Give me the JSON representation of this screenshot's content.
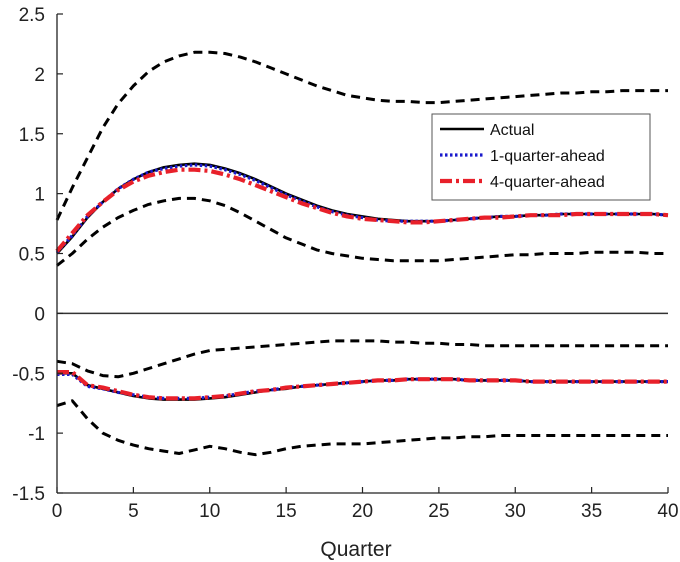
{
  "chart_data": {
    "type": "line",
    "title": "",
    "xlabel": "Quarter",
    "ylabel": "",
    "xlim": [
      0,
      40
    ],
    "ylim": [
      -1.5,
      2.5
    ],
    "xticks": [
      0,
      5,
      10,
      15,
      20,
      25,
      30,
      35,
      40
    ],
    "yticks": [
      -1.5,
      -1,
      -0.5,
      0,
      0.5,
      1,
      1.5,
      2,
      2.5
    ],
    "ytick_labels": [
      "-1.5",
      "-1",
      "-0.5",
      "0",
      "0.5",
      "1",
      "1.5",
      "2",
      "2.5"
    ],
    "grid": false,
    "legend_position": "top-right",
    "zero_line": true,
    "legend": [
      {
        "name": "Actual",
        "color": "#000000",
        "style": "solid"
      },
      {
        "name": "1-quarter-ahead",
        "color": "#1a1acc",
        "style": "dotted"
      },
      {
        "name": "4-quarter-ahead",
        "color": "#e8202a",
        "style": "dashdot"
      }
    ],
    "series": [
      {
        "group": "upper",
        "role": "upper-band",
        "color": "#000000",
        "style": "dashed",
        "x": [
          0,
          1,
          2,
          3,
          4,
          5,
          6,
          7,
          8,
          9,
          10,
          11,
          12,
          13,
          14,
          15,
          16,
          17,
          18,
          19,
          20,
          21,
          22,
          23,
          24,
          25,
          26,
          27,
          28,
          29,
          30,
          31,
          32,
          33,
          34,
          35,
          36,
          37,
          38,
          39,
          40
        ],
        "y": [
          0.78,
          1.05,
          1.3,
          1.55,
          1.75,
          1.9,
          2.02,
          2.1,
          2.15,
          2.18,
          2.18,
          2.17,
          2.14,
          2.1,
          2.05,
          2.0,
          1.95,
          1.9,
          1.86,
          1.82,
          1.8,
          1.78,
          1.77,
          1.77,
          1.76,
          1.76,
          1.77,
          1.78,
          1.79,
          1.8,
          1.81,
          1.82,
          1.83,
          1.84,
          1.84,
          1.85,
          1.85,
          1.86,
          1.86,
          1.86,
          1.86
        ]
      },
      {
        "group": "upper",
        "role": "lower-band",
        "color": "#000000",
        "style": "dashed",
        "x": [
          0,
          1,
          2,
          3,
          4,
          5,
          6,
          7,
          8,
          9,
          10,
          11,
          12,
          13,
          14,
          15,
          16,
          17,
          18,
          19,
          20,
          21,
          22,
          23,
          24,
          25,
          26,
          27,
          28,
          29,
          30,
          31,
          32,
          33,
          34,
          35,
          36,
          37,
          38,
          39,
          40
        ],
        "y": [
          0.4,
          0.5,
          0.62,
          0.72,
          0.8,
          0.86,
          0.91,
          0.94,
          0.96,
          0.96,
          0.94,
          0.9,
          0.84,
          0.77,
          0.7,
          0.63,
          0.58,
          0.53,
          0.5,
          0.48,
          0.46,
          0.45,
          0.44,
          0.44,
          0.44,
          0.44,
          0.45,
          0.46,
          0.47,
          0.48,
          0.49,
          0.49,
          0.5,
          0.5,
          0.5,
          0.51,
          0.51,
          0.51,
          0.51,
          0.5,
          0.5
        ]
      },
      {
        "group": "upper",
        "name": "Actual",
        "color": "#000000",
        "style": "solid",
        "x": [
          0,
          1,
          2,
          3,
          4,
          5,
          6,
          7,
          8,
          9,
          10,
          11,
          12,
          13,
          14,
          15,
          16,
          17,
          18,
          19,
          20,
          21,
          22,
          23,
          24,
          25,
          26,
          27,
          28,
          29,
          30,
          31,
          32,
          33,
          34,
          35,
          36,
          37,
          38,
          39,
          40
        ],
        "y": [
          0.5,
          0.64,
          0.8,
          0.93,
          1.04,
          1.12,
          1.18,
          1.22,
          1.24,
          1.25,
          1.24,
          1.21,
          1.17,
          1.12,
          1.06,
          1.0,
          0.95,
          0.9,
          0.86,
          0.83,
          0.81,
          0.79,
          0.78,
          0.77,
          0.77,
          0.77,
          0.78,
          0.79,
          0.8,
          0.81,
          0.81,
          0.82,
          0.82,
          0.83,
          0.83,
          0.83,
          0.83,
          0.83,
          0.83,
          0.83,
          0.82
        ]
      },
      {
        "group": "upper",
        "name": "1-quarter-ahead",
        "color": "#1a1acc",
        "style": "dotted",
        "x": [
          0,
          1,
          2,
          3,
          4,
          5,
          6,
          7,
          8,
          9,
          10,
          11,
          12,
          13,
          14,
          15,
          16,
          17,
          18,
          19,
          20,
          21,
          22,
          23,
          24,
          25,
          26,
          27,
          28,
          29,
          30,
          31,
          32,
          33,
          34,
          35,
          36,
          37,
          38,
          39,
          40
        ],
        "y": [
          0.51,
          0.65,
          0.81,
          0.93,
          1.04,
          1.12,
          1.18,
          1.21,
          1.23,
          1.24,
          1.23,
          1.2,
          1.16,
          1.11,
          1.05,
          0.99,
          0.94,
          0.89,
          0.85,
          0.82,
          0.8,
          0.78,
          0.77,
          0.77,
          0.77,
          0.77,
          0.78,
          0.79,
          0.8,
          0.81,
          0.81,
          0.82,
          0.82,
          0.83,
          0.83,
          0.83,
          0.83,
          0.83,
          0.83,
          0.83,
          0.82
        ]
      },
      {
        "group": "upper",
        "name": "4-quarter-ahead",
        "color": "#e8202a",
        "style": "dashdot",
        "x": [
          0,
          1,
          2,
          3,
          4,
          5,
          6,
          7,
          8,
          9,
          10,
          11,
          12,
          13,
          14,
          15,
          16,
          17,
          18,
          19,
          20,
          21,
          22,
          23,
          24,
          25,
          26,
          27,
          28,
          29,
          30,
          31,
          32,
          33,
          34,
          35,
          36,
          37,
          38,
          39,
          40
        ],
        "y": [
          0.52,
          0.67,
          0.82,
          0.93,
          1.03,
          1.1,
          1.15,
          1.18,
          1.2,
          1.2,
          1.19,
          1.16,
          1.12,
          1.07,
          1.02,
          0.97,
          0.92,
          0.88,
          0.84,
          0.81,
          0.79,
          0.78,
          0.77,
          0.76,
          0.76,
          0.77,
          0.78,
          0.79,
          0.8,
          0.8,
          0.81,
          0.82,
          0.82,
          0.82,
          0.83,
          0.83,
          0.83,
          0.83,
          0.83,
          0.83,
          0.82
        ]
      },
      {
        "group": "lower",
        "role": "upper-band",
        "color": "#000000",
        "style": "dashed",
        "x": [
          0,
          1,
          2,
          3,
          4,
          5,
          6,
          7,
          8,
          9,
          10,
          11,
          12,
          13,
          14,
          15,
          16,
          17,
          18,
          19,
          20,
          21,
          22,
          23,
          24,
          25,
          26,
          27,
          28,
          29,
          30,
          31,
          32,
          33,
          34,
          35,
          36,
          37,
          38,
          39,
          40
        ],
        "y": [
          -0.4,
          -0.42,
          -0.48,
          -0.52,
          -0.53,
          -0.5,
          -0.46,
          -0.42,
          -0.38,
          -0.34,
          -0.31,
          -0.3,
          -0.29,
          -0.28,
          -0.27,
          -0.26,
          -0.25,
          -0.24,
          -0.23,
          -0.23,
          -0.23,
          -0.23,
          -0.24,
          -0.24,
          -0.25,
          -0.25,
          -0.26,
          -0.26,
          -0.27,
          -0.27,
          -0.27,
          -0.27,
          -0.27,
          -0.27,
          -0.27,
          -0.27,
          -0.27,
          -0.27,
          -0.27,
          -0.27,
          -0.27
        ]
      },
      {
        "group": "lower",
        "role": "lower-band",
        "color": "#000000",
        "style": "dashed",
        "x": [
          0,
          1,
          2,
          3,
          4,
          5,
          6,
          7,
          8,
          9,
          10,
          11,
          12,
          13,
          14,
          15,
          16,
          17,
          18,
          19,
          20,
          21,
          22,
          23,
          24,
          25,
          26,
          27,
          28,
          29,
          30,
          31,
          32,
          33,
          34,
          35,
          36,
          37,
          38,
          39,
          40
        ],
        "y": [
          -0.77,
          -0.73,
          -0.88,
          -1.0,
          -1.06,
          -1.1,
          -1.13,
          -1.15,
          -1.17,
          -1.14,
          -1.11,
          -1.13,
          -1.16,
          -1.18,
          -1.16,
          -1.13,
          -1.11,
          -1.1,
          -1.09,
          -1.09,
          -1.09,
          -1.08,
          -1.07,
          -1.06,
          -1.05,
          -1.04,
          -1.04,
          -1.03,
          -1.03,
          -1.02,
          -1.02,
          -1.02,
          -1.02,
          -1.02,
          -1.02,
          -1.02,
          -1.02,
          -1.02,
          -1.02,
          -1.02,
          -1.02
        ]
      },
      {
        "group": "lower",
        "name": "Actual",
        "color": "#000000",
        "style": "solid",
        "x": [
          0,
          1,
          2,
          3,
          4,
          5,
          6,
          7,
          8,
          9,
          10,
          11,
          12,
          13,
          14,
          15,
          16,
          17,
          18,
          19,
          20,
          21,
          22,
          23,
          24,
          25,
          26,
          27,
          28,
          29,
          30,
          31,
          32,
          33,
          34,
          35,
          36,
          37,
          38,
          39,
          40
        ],
        "y": [
          -0.5,
          -0.5,
          -0.6,
          -0.63,
          -0.66,
          -0.69,
          -0.71,
          -0.72,
          -0.72,
          -0.72,
          -0.71,
          -0.7,
          -0.68,
          -0.66,
          -0.64,
          -0.63,
          -0.61,
          -0.6,
          -0.59,
          -0.58,
          -0.57,
          -0.56,
          -0.56,
          -0.55,
          -0.55,
          -0.55,
          -0.55,
          -0.56,
          -0.56,
          -0.56,
          -0.56,
          -0.57,
          -0.57,
          -0.57,
          -0.57,
          -0.57,
          -0.57,
          -0.57,
          -0.57,
          -0.57,
          -0.57
        ]
      },
      {
        "group": "lower",
        "name": "1-quarter-ahead",
        "color": "#1a1acc",
        "style": "dotted",
        "x": [
          0,
          1,
          2,
          3,
          4,
          5,
          6,
          7,
          8,
          9,
          10,
          11,
          12,
          13,
          14,
          15,
          16,
          17,
          18,
          19,
          20,
          21,
          22,
          23,
          24,
          25,
          26,
          27,
          28,
          29,
          30,
          31,
          32,
          33,
          34,
          35,
          36,
          37,
          38,
          39,
          40
        ],
        "y": [
          -0.51,
          -0.51,
          -0.61,
          -0.63,
          -0.66,
          -0.68,
          -0.7,
          -0.71,
          -0.71,
          -0.71,
          -0.7,
          -0.69,
          -0.67,
          -0.65,
          -0.64,
          -0.62,
          -0.61,
          -0.6,
          -0.59,
          -0.58,
          -0.57,
          -0.56,
          -0.56,
          -0.55,
          -0.55,
          -0.55,
          -0.55,
          -0.56,
          -0.56,
          -0.56,
          -0.56,
          -0.57,
          -0.57,
          -0.57,
          -0.57,
          -0.57,
          -0.57,
          -0.57,
          -0.57,
          -0.57,
          -0.57
        ]
      },
      {
        "group": "lower",
        "name": "4-quarter-ahead",
        "color": "#e8202a",
        "style": "dashdot",
        "x": [
          0,
          1,
          2,
          3,
          4,
          5,
          6,
          7,
          8,
          9,
          10,
          11,
          12,
          13,
          14,
          15,
          16,
          17,
          18,
          19,
          20,
          21,
          22,
          23,
          24,
          25,
          26,
          27,
          28,
          29,
          30,
          31,
          32,
          33,
          34,
          35,
          36,
          37,
          38,
          39,
          40
        ],
        "y": [
          -0.49,
          -0.49,
          -0.6,
          -0.62,
          -0.65,
          -0.68,
          -0.7,
          -0.71,
          -0.71,
          -0.71,
          -0.7,
          -0.69,
          -0.67,
          -0.65,
          -0.64,
          -0.62,
          -0.61,
          -0.6,
          -0.59,
          -0.58,
          -0.57,
          -0.56,
          -0.56,
          -0.55,
          -0.55,
          -0.55,
          -0.55,
          -0.56,
          -0.56,
          -0.56,
          -0.56,
          -0.57,
          -0.57,
          -0.57,
          -0.57,
          -0.57,
          -0.57,
          -0.57,
          -0.57,
          -0.57,
          -0.57
        ]
      }
    ]
  }
}
